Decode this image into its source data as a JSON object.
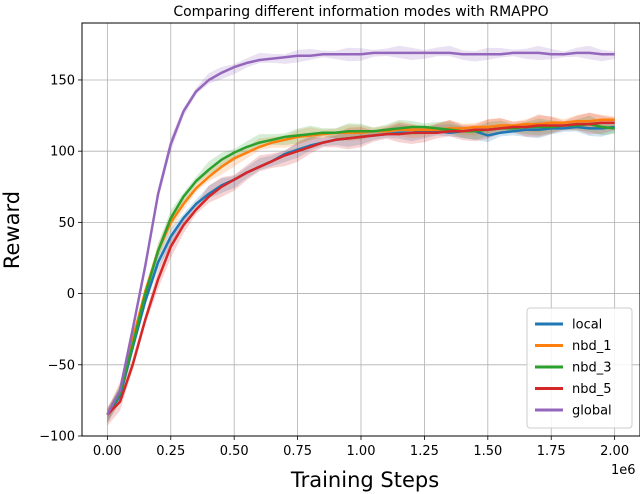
{
  "chart_data": {
    "type": "line",
    "title": "Comparing different information modes with RMAPPO",
    "xlabel": "Training Steps",
    "ylabel": "Reward",
    "x_offset_label": "1e6",
    "xlim": [
      -0.1,
      2.1
    ],
    "ylim": [
      -100,
      190
    ],
    "xticks": [
      0.0,
      0.25,
      0.5,
      0.75,
      1.0,
      1.25,
      1.5,
      1.75,
      2.0
    ],
    "xtick_labels": [
      "0.00",
      "0.25",
      "0.50",
      "0.75",
      "1.00",
      "1.25",
      "1.50",
      "1.75",
      "2.00"
    ],
    "yticks": [
      -100,
      -50,
      0,
      50,
      100,
      150
    ],
    "ytick_labels": [
      "−100",
      "−50",
      "0",
      "50",
      "100",
      "150"
    ],
    "grid": true,
    "legend_position": "bottom-right",
    "x": [
      0.0,
      0.05,
      0.1,
      0.15,
      0.2,
      0.25,
      0.3,
      0.35,
      0.4,
      0.45,
      0.5,
      0.55,
      0.6,
      0.65,
      0.7,
      0.75,
      0.8,
      0.85,
      0.9,
      0.95,
      1.0,
      1.05,
      1.1,
      1.15,
      1.2,
      1.25,
      1.3,
      1.35,
      1.4,
      1.45,
      1.5,
      1.55,
      1.6,
      1.65,
      1.7,
      1.75,
      1.8,
      1.85,
      1.9,
      1.95,
      2.0
    ],
    "series": [
      {
        "name": "local",
        "color": "#1f77b4",
        "band": 6,
        "values": [
          -85,
          -72,
          -38,
          -5,
          22,
          40,
          53,
          63,
          70,
          76,
          80,
          85,
          89,
          93,
          98,
          101,
          104,
          106,
          108,
          109,
          110,
          111,
          112,
          113,
          113,
          114,
          114,
          113,
          114,
          114,
          111,
          113,
          114,
          115,
          115,
          116,
          116,
          117,
          116,
          116,
          117
        ]
      },
      {
        "name": "nbd_1",
        "color": "#ff7f0e",
        "band": 6,
        "values": [
          -85,
          -68,
          -32,
          2,
          30,
          50,
          63,
          74,
          82,
          89,
          95,
          99,
          103,
          106,
          108,
          110,
          111,
          112,
          113,
          113,
          113,
          114,
          114,
          115,
          115,
          115,
          115,
          116,
          116,
          117,
          117,
          118,
          118,
          119,
          119,
          120,
          120,
          121,
          121,
          122,
          122
        ]
      },
      {
        "name": "nbd_3",
        "color": "#2ca02c",
        "band": 6,
        "values": [
          -85,
          -70,
          -36,
          0,
          30,
          53,
          68,
          79,
          87,
          94,
          99,
          103,
          106,
          108,
          110,
          111,
          112,
          113,
          113,
          114,
          114,
          114,
          115,
          116,
          117,
          117,
          116,
          115,
          114,
          114,
          115,
          116,
          116,
          117,
          117,
          117,
          118,
          118,
          119,
          117,
          116
        ]
      },
      {
        "name": "nbd_5",
        "color": "#d62728",
        "band": 8,
        "values": [
          -85,
          -76,
          -50,
          -18,
          10,
          33,
          48,
          59,
          68,
          75,
          80,
          85,
          89,
          93,
          97,
          100,
          103,
          106,
          108,
          109,
          110,
          111,
          112,
          112,
          113,
          113,
          113,
          114,
          114,
          115,
          115,
          116,
          117,
          117,
          118,
          118,
          118,
          119,
          119,
          120,
          120
        ]
      },
      {
        "name": "global",
        "color": "#9467bd",
        "band": 5,
        "values": [
          -85,
          -68,
          -25,
          20,
          70,
          105,
          128,
          142,
          150,
          155,
          159,
          162,
          164,
          165,
          166,
          167,
          167,
          168,
          168,
          168,
          168,
          169,
          169,
          169,
          169,
          169,
          169,
          169,
          168,
          168,
          168,
          168,
          169,
          169,
          169,
          168,
          168,
          169,
          169,
          168,
          168
        ]
      }
    ]
  }
}
